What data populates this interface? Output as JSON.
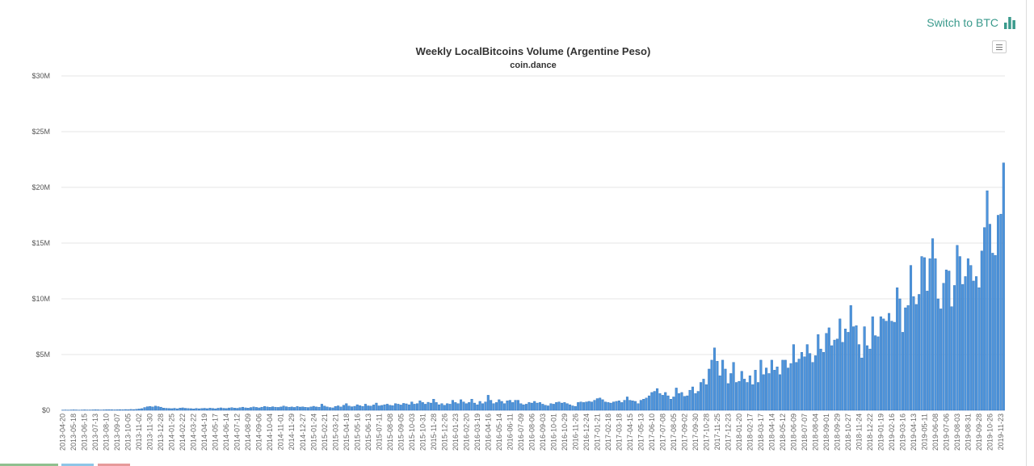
{
  "header": {
    "switch_label": "Switch to BTC",
    "switch_icon": "bar-chart-icon",
    "menu_icon": "hamburger-menu-icon"
  },
  "colors": {
    "bar_fill": "#4d94dc",
    "bar_stroke": "#2e6fb5",
    "accent": "#3a9a8c",
    "grid": "#e6e6e6"
  },
  "chart_data": {
    "type": "bar",
    "title": "Weekly LocalBitcoins Volume (Argentine Peso)",
    "subtitle": "coin.dance",
    "xlabel": "",
    "ylabel": "",
    "unit": "$M",
    "ylim": [
      0,
      30
    ],
    "y_ticks": [
      0,
      5,
      10,
      15,
      20,
      25,
      30
    ],
    "y_tick_labels": [
      "$0",
      "$5M",
      "$10M",
      "$15M",
      "$20M",
      "$25M",
      "$30M"
    ],
    "grid": true,
    "legend": "none",
    "x_tick_labels": [
      "2013-04-20",
      "2013-05-18",
      "2013-06-15",
      "2013-07-13",
      "2013-08-10",
      "2013-09-07",
      "2013-10-05",
      "2013-11-02",
      "2013-11-30",
      "2013-12-28",
      "2014-01-25",
      "2014-02-22",
      "2014-03-22",
      "2014-04-19",
      "2014-05-17",
      "2014-06-14",
      "2014-07-12",
      "2014-08-09",
      "2014-09-06",
      "2014-10-04",
      "2014-11-01",
      "2014-11-29",
      "2014-12-27",
      "2015-01-24",
      "2015-02-21",
      "2015-03-21",
      "2015-04-18",
      "2015-05-16",
      "2015-06-13",
      "2015-07-11",
      "2015-08-08",
      "2015-09-05",
      "2015-10-03",
      "2015-10-31",
      "2015-11-28",
      "2015-12-26",
      "2016-01-23",
      "2016-02-20",
      "2016-03-19",
      "2016-04-16",
      "2016-05-14",
      "2016-06-11",
      "2016-07-09",
      "2016-08-06",
      "2016-09-03",
      "2016-10-01",
      "2016-10-29",
      "2016-11-26",
      "2016-12-24",
      "2017-01-21",
      "2017-02-18",
      "2017-03-18",
      "2017-04-15",
      "2017-05-13",
      "2017-06-10",
      "2017-07-08",
      "2017-08-05",
      "2017-09-02",
      "2017-09-30",
      "2017-10-28",
      "2017-11-25",
      "2017-12-23",
      "2018-01-20",
      "2018-02-17",
      "2018-03-17",
      "2018-04-14",
      "2018-05-12",
      "2018-06-09",
      "2018-07-07",
      "2018-08-04",
      "2018-09-01",
      "2018-09-29",
      "2018-10-27",
      "2018-11-24",
      "2018-12-22",
      "2019-01-19",
      "2019-02-16",
      "2019-03-16",
      "2019-04-13",
      "2019-05-11",
      "2019-06-08",
      "2019-07-06",
      "2019-08-03",
      "2019-08-31",
      "2019-09-28",
      "2019-10-26",
      "2019-11-23"
    ],
    "values": [
      0.02,
      0.03,
      0.02,
      0.03,
      0.04,
      0.03,
      0.02,
      0.03,
      0.04,
      0.03,
      0.03,
      0.04,
      0.05,
      0.04,
      0.03,
      0.04,
      0.05,
      0.06,
      0.05,
      0.04,
      0.05,
      0.06,
      0.05,
      0.07,
      0.06,
      0.08,
      0.07,
      0.09,
      0.12,
      0.15,
      0.25,
      0.32,
      0.35,
      0.3,
      0.38,
      0.33,
      0.28,
      0.2,
      0.18,
      0.16,
      0.15,
      0.18,
      0.14,
      0.2,
      0.22,
      0.18,
      0.16,
      0.15,
      0.13,
      0.17,
      0.14,
      0.16,
      0.18,
      0.15,
      0.2,
      0.17,
      0.14,
      0.19,
      0.22,
      0.18,
      0.16,
      0.21,
      0.24,
      0.2,
      0.18,
      0.23,
      0.28,
      0.22,
      0.2,
      0.25,
      0.3,
      0.26,
      0.22,
      0.28,
      0.35,
      0.3,
      0.27,
      0.32,
      0.28,
      0.26,
      0.3,
      0.38,
      0.32,
      0.28,
      0.3,
      0.26,
      0.34,
      0.29,
      0.31,
      0.27,
      0.25,
      0.3,
      0.36,
      0.3,
      0.28,
      0.55,
      0.38,
      0.3,
      0.25,
      0.22,
      0.35,
      0.4,
      0.3,
      0.45,
      0.6,
      0.38,
      0.32,
      0.36,
      0.5,
      0.42,
      0.35,
      0.55,
      0.4,
      0.38,
      0.48,
      0.65,
      0.4,
      0.44,
      0.5,
      0.55,
      0.45,
      0.42,
      0.6,
      0.55,
      0.48,
      0.62,
      0.58,
      0.5,
      0.75,
      0.55,
      0.6,
      0.85,
      0.7,
      0.55,
      0.72,
      0.65,
      1.0,
      0.7,
      0.5,
      0.6,
      0.45,
      0.6,
      0.55,
      0.9,
      0.7,
      0.6,
      0.95,
      0.75,
      0.6,
      0.7,
      1.0,
      0.65,
      0.5,
      0.8,
      0.6,
      0.75,
      1.35,
      0.9,
      0.6,
      0.7,
      0.95,
      0.8,
      0.6,
      0.85,
      0.9,
      0.7,
      0.9,
      0.9,
      0.6,
      0.5,
      0.55,
      0.7,
      0.65,
      0.8,
      0.65,
      0.7,
      0.55,
      0.45,
      0.4,
      0.6,
      0.55,
      0.7,
      0.75,
      0.65,
      0.7,
      0.6,
      0.5,
      0.4,
      0.35,
      0.7,
      0.75,
      0.7,
      0.75,
      0.8,
      0.75,
      0.9,
      1.05,
      1.1,
      0.95,
      0.75,
      0.7,
      0.65,
      0.75,
      0.8,
      0.85,
      0.7,
      0.9,
      1.2,
      0.9,
      0.85,
      0.8,
      0.6,
      0.9,
      1.0,
      1.1,
      1.3,
      1.6,
      1.7,
      1.95,
      1.5,
      1.35,
      1.6,
      1.3,
      1.0,
      1.2,
      2.0,
      1.5,
      1.6,
      1.25,
      1.3,
      1.8,
      2.1,
      1.5,
      1.7,
      2.5,
      2.8,
      2.3,
      3.7,
      4.5,
      5.6,
      4.4,
      3.1,
      4.5,
      3.7,
      2.4,
      3.3,
      4.3,
      2.5,
      2.6,
      3.5,
      2.8,
      2.5,
      3.1,
      2.3,
      3.6,
      2.5,
      4.5,
      3.2,
      3.8,
      3.3,
      4.5,
      3.6,
      3.9,
      3.2,
      4.5,
      4.5,
      3.8,
      4.2,
      5.9,
      4.3,
      4.6,
      5.2,
      4.8,
      5.9,
      5.1,
      4.3,
      4.9,
      6.8,
      5.5,
      5.2,
      6.9,
      7.4,
      5.8,
      6.3,
      6.4,
      8.2,
      6.1,
      7.3,
      7.0,
      9.4,
      7.5,
      7.6,
      5.9,
      4.7,
      7.5,
      5.8,
      5.5,
      8.4,
      6.7,
      6.6,
      8.4,
      8.2,
      8.0,
      8.7,
      8.0,
      7.9,
      11.0,
      10.0,
      7.0,
      9.2,
      9.4,
      13.0,
      10.2,
      9.5,
      10.4,
      13.8,
      13.7,
      10.7,
      13.6,
      15.4,
      13.6,
      10.0,
      9.1,
      11.4,
      12.6,
      12.5,
      9.3,
      11.2,
      14.8,
      13.8,
      11.3,
      12.0,
      13.6,
      13.0,
      11.6,
      12.0,
      11.0,
      14.3,
      16.4,
      19.7,
      16.7,
      14.1,
      13.9,
      17.5,
      17.6,
      22.2
    ]
  }
}
